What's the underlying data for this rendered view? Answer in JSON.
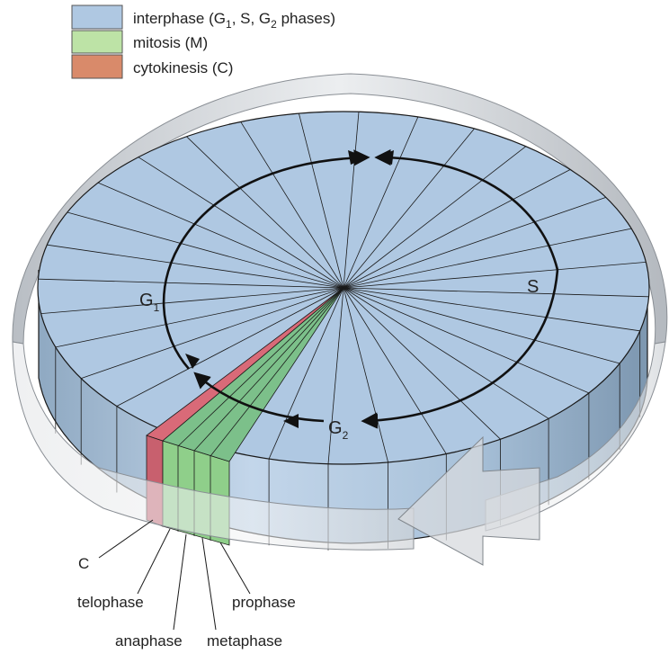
{
  "legend": [
    {
      "key": "interphase",
      "color": "#afc8e2",
      "parts": [
        "interphase (G",
        "1",
        ", S, G",
        "2",
        " phases)"
      ]
    },
    {
      "key": "mitosis",
      "color": "#bde3a6",
      "parts": [
        "mitosis (M)"
      ]
    },
    {
      "key": "cytokinesis",
      "color": "#d98a6a",
      "parts": [
        "cytokinesis (C)"
      ]
    }
  ],
  "cycle_labels": {
    "g1": {
      "main": "G",
      "sub": "1"
    },
    "s": {
      "main": "S"
    },
    "g2": {
      "main": "G",
      "sub": "2"
    }
  },
  "stage_labels": {
    "c": "C",
    "telophase": "telophase",
    "anaphase": "anaphase",
    "prophase": "prophase",
    "metaphase": "metaphase"
  },
  "colors": {
    "interphase_top": "#afc8e2",
    "side_wall": "#9fb9d2",
    "mitosis_top": "#7cc08a",
    "mitosis_side": "#8fcf8a",
    "cytokinesis_top": "#d96a78",
    "cytokinesis_side": "#c8606e",
    "ring": "#cfd2d6",
    "outline": "#1a1a1a"
  }
}
